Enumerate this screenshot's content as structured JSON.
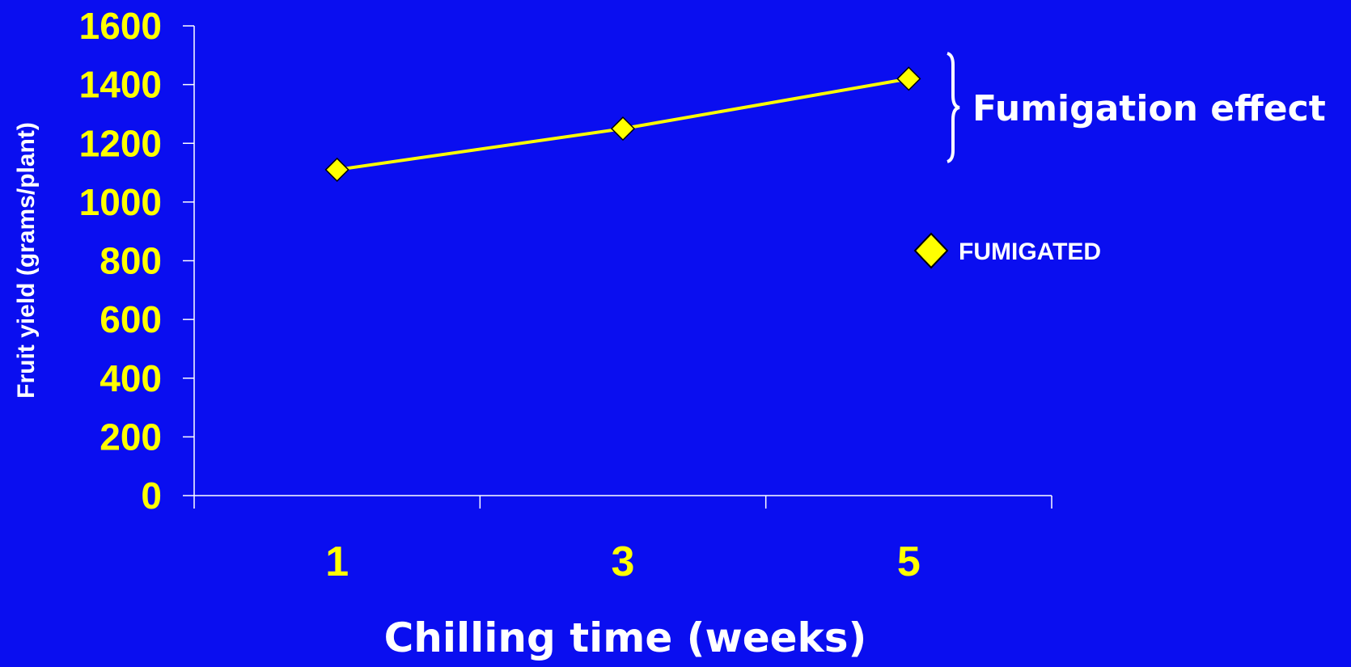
{
  "chart_data": {
    "type": "line",
    "x": [
      1,
      3,
      5
    ],
    "x_tick_labels": [
      "1",
      "3",
      "5"
    ],
    "xlim": [
      0,
      6
    ],
    "series": [
      {
        "name": "FUMIGATED",
        "values": [
          1110,
          1250,
          1420
        ],
        "color": "#ffff00",
        "marker": "diamond"
      }
    ],
    "ylim": [
      0,
      1600
    ],
    "y_ticks": [
      0,
      200,
      400,
      600,
      800,
      1000,
      1200,
      1400,
      1600
    ],
    "y_tick_labels": [
      "0",
      "200",
      "400",
      "600",
      "800",
      "1000",
      "1200",
      "1400",
      "1600"
    ],
    "xlabel": "Chilling time (weeks)",
    "ylabel": "Fruit yield (grams/plant)",
    "title": "",
    "annotation": "Fumigation effect",
    "legend": {
      "entries": [
        "FUMIGATED"
      ],
      "placement": "right"
    },
    "grid": false,
    "background_color": "#0a0ef0",
    "axis_color": "#ffffff",
    "tick_label_color": "#ffff00",
    "label_color": "#ffffff"
  }
}
